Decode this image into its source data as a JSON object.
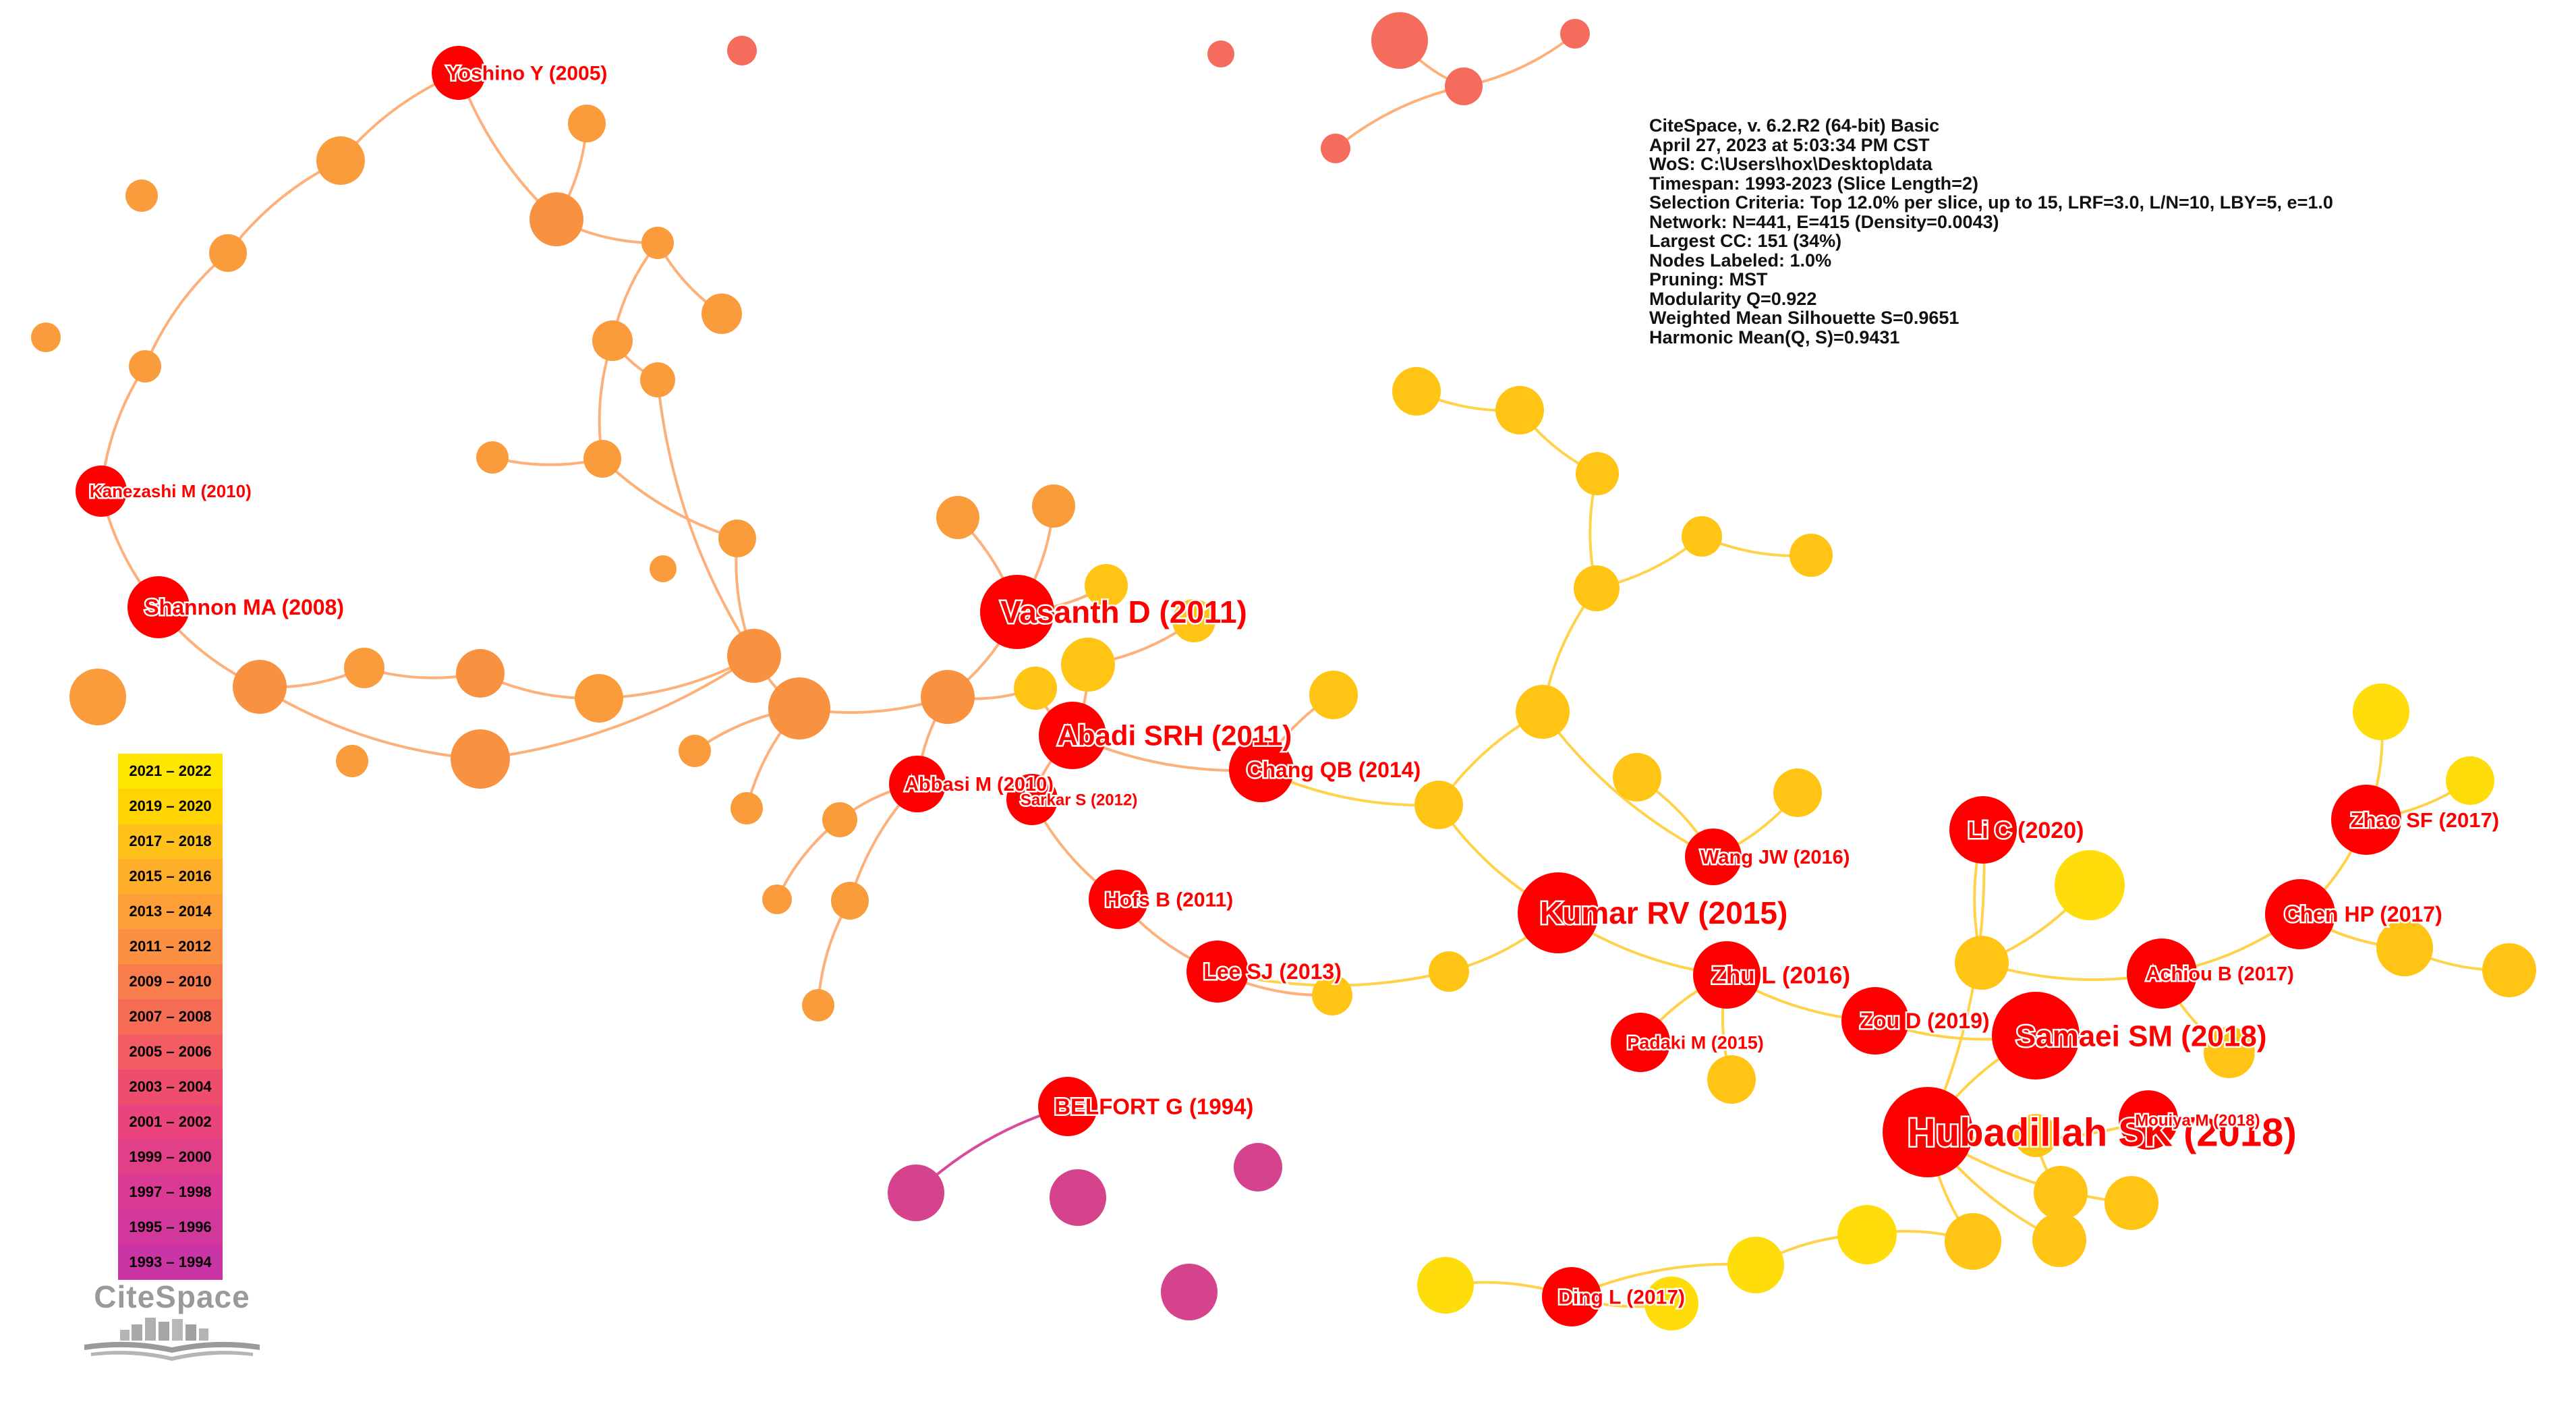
{
  "info": {
    "lines": [
      "CiteSpace, v. 6.2.R2 (64-bit) Basic",
      "April 27, 2023 at 5:03:34 PM CST",
      "WoS: C:\\Users\\hox\\Desktop\\data",
      "Timespan: 1993-2023 (Slice Length=2)",
      "Selection Criteria: Top 12.0% per slice, up to 15, LRF=3.0, L/N=10, LBY=5, e=1.0",
      "Network: N=441, E=415 (Density=0.0043)",
      "Largest CC: 151 (34%)",
      "Nodes Labeled: 1.0%",
      "Pruning: MST",
      "Modularity Q=0.922",
      "Weighted Mean Silhouette S=0.9651",
      "Harmonic Mean(Q, S)=0.9431"
    ]
  },
  "legend": {
    "items": [
      {
        "label": "2021 – 2022",
        "color": "#ffe600"
      },
      {
        "label": "2019 – 2020",
        "color": "#ffd400"
      },
      {
        "label": "2017 – 2018",
        "color": "#ffc21a"
      },
      {
        "label": "2015 – 2016",
        "color": "#ffae2a"
      },
      {
        "label": "2013 – 2014",
        "color": "#fd9f36"
      },
      {
        "label": "2011 – 2012",
        "color": "#fb8f42"
      },
      {
        "label": "2009 – 2010",
        "color": "#f97d4c"
      },
      {
        "label": "2007 – 2008",
        "color": "#f66c55"
      },
      {
        "label": "2005 – 2006",
        "color": "#f25c62"
      },
      {
        "label": "2003 – 2004",
        "color": "#ee4d6e"
      },
      {
        "label": "2001 – 2002",
        "color": "#e9447c"
      },
      {
        "label": "1999 – 2000",
        "color": "#e23f89"
      },
      {
        "label": "1997 – 1998",
        "color": "#da3a93"
      },
      {
        "label": "1995 – 1996",
        "color": "#d2379c"
      },
      {
        "label": "1993 – 1994",
        "color": "#c935a4"
      }
    ]
  },
  "logo": {
    "text": "CiteSpace"
  },
  "network": {
    "labeled_nodes": [
      {
        "label": "Yoshino Y (2005)"
      },
      {
        "label": "Kanezashi M (2010)"
      },
      {
        "label": "Shannon MA (2008)"
      },
      {
        "label": "Vasanth D (2011)"
      },
      {
        "label": "Abadi SRH (2011)"
      },
      {
        "label": "Abbasi M (2010)"
      },
      {
        "label": "Sarkar S (2012)"
      },
      {
        "label": "Chang QB (2014)"
      },
      {
        "label": "Hofs B (2011)"
      },
      {
        "label": "Lee SJ (2013)"
      },
      {
        "label": "BELFORT G (1994)"
      },
      {
        "label": "Kumar RV (2015)"
      },
      {
        "label": "Wang JW (2016)"
      },
      {
        "label": "Zhu L (2016)"
      },
      {
        "label": "Padaki M (2015)"
      },
      {
        "label": "Zou D (2019)"
      },
      {
        "label": "Samaei SM (2018)"
      },
      {
        "label": "Hubadillah SK (2018)"
      },
      {
        "label": "Mouiya M (2018)"
      },
      {
        "label": "Li C (2020)"
      },
      {
        "label": "Achiou B (2017)"
      },
      {
        "label": "Chen HP (2017)"
      },
      {
        "label": "Zhao SF (2017)"
      },
      {
        "label": "Ding L (2017)"
      }
    ]
  },
  "colors": {
    "labeled_node": "#ff0000",
    "edge_orange": "#fdb07a",
    "edge_yellow": "#ffd24a",
    "edge_pink": "#d94a9a",
    "label_text": "#ff0000"
  }
}
